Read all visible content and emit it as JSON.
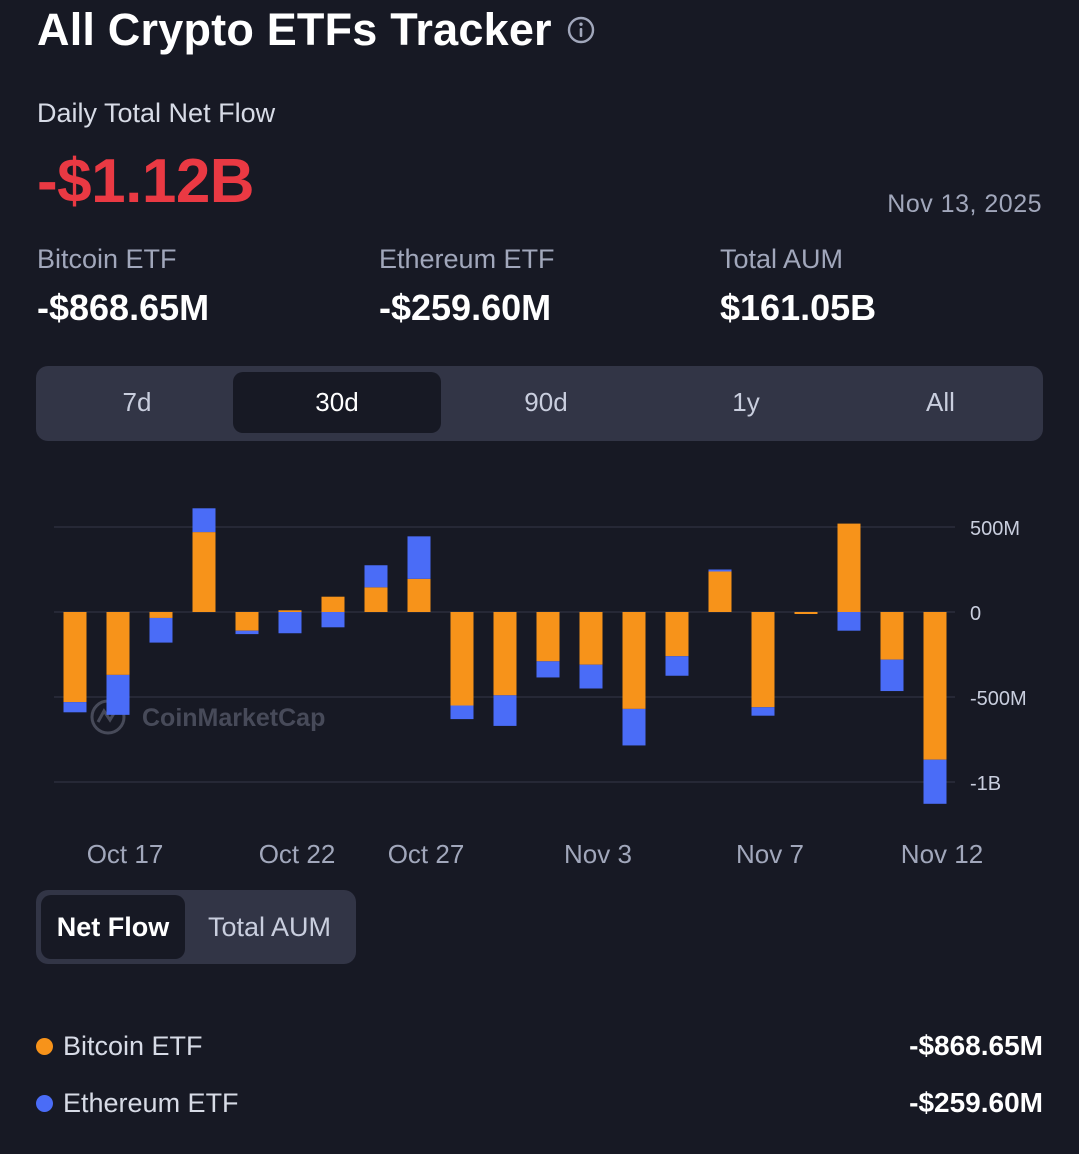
{
  "header": {
    "title": "All Crypto ETFs Tracker",
    "info_icon": "info-circle-icon"
  },
  "daily": {
    "label": "Daily Total Net Flow",
    "value": "-$1.12B",
    "date": "Nov 13, 2025",
    "value_color": "#ea3943"
  },
  "stats": [
    {
      "label": "Bitcoin ETF",
      "value": "-$868.65M"
    },
    {
      "label": "Ethereum ETF",
      "value": "-$259.60M"
    },
    {
      "label": "Total AUM",
      "value": "$161.05B"
    }
  ],
  "range_tabs": [
    {
      "label": "7d",
      "active": false
    },
    {
      "label": "30d",
      "active": true
    },
    {
      "label": "90d",
      "active": false
    },
    {
      "label": "1y",
      "active": false
    },
    {
      "label": "All",
      "active": false
    }
  ],
  "watermark": "CoinMarketCap",
  "chart_data": {
    "type": "bar",
    "stacked": true,
    "y_tick_labels": [
      "500M",
      "0",
      "-500M",
      "-1B"
    ],
    "y_ticks": [
      500,
      0,
      -500,
      -1000
    ],
    "ylim": [
      -1100,
      600
    ],
    "x_tick_labels": [
      {
        "label": "Oct 17",
        "index": 1
      },
      {
        "label": "Oct 22",
        "index": 5
      },
      {
        "label": "Oct 27",
        "index": 8
      },
      {
        "label": "Nov 3",
        "index": 12
      },
      {
        "label": "Nov 7",
        "index": 16
      },
      {
        "label": "Nov 12",
        "index": 20
      }
    ],
    "grid": true,
    "series": [
      {
        "name": "Bitcoin ETF",
        "color": "#f7931a",
        "values": [
          -530,
          -370,
          -35,
          470,
          -110,
          10,
          90,
          145,
          195,
          -550,
          -490,
          -290,
          -310,
          -570,
          -260,
          240,
          -560,
          -10,
          520,
          -280,
          -868.65
        ]
      },
      {
        "name": "Ethereum ETF",
        "color": "#4a6cf7",
        "values": [
          -60,
          -235,
          -145,
          140,
          -20,
          -125,
          -90,
          130,
          250,
          -80,
          -180,
          -95,
          -140,
          -215,
          -115,
          10,
          -50,
          0,
          -110,
          -185,
          -259.6
        ]
      }
    ]
  },
  "view_toggle": [
    {
      "label": "Net Flow",
      "active": true
    },
    {
      "label": "Total AUM",
      "active": false
    }
  ],
  "legend": [
    {
      "label": "Bitcoin ETF",
      "value": "-$868.65M",
      "color": "#f7931a"
    },
    {
      "label": "Ethereum ETF",
      "value": "-$259.60M",
      "color": "#4a6cf7"
    }
  ]
}
